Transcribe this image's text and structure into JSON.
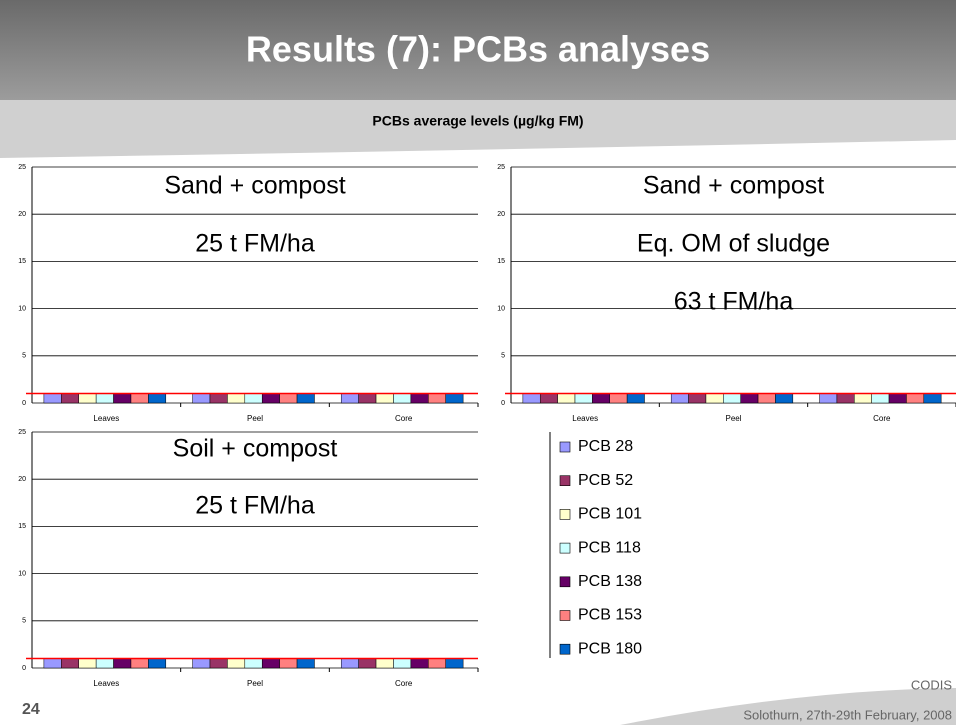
{
  "header": {
    "title": "Results (7): PCBs analyses",
    "subtitle": "PCBs average levels (µg/kg FM)"
  },
  "footer": {
    "page": "24",
    "org": "CODIS",
    "event": "Solothurn, 27th-29th February, 2008"
  },
  "chart_data": [
    {
      "type": "bar",
      "categories": [
        "Leaves",
        "Peel",
        "Core"
      ],
      "ylim": [
        0,
        25
      ],
      "yticks": [
        0,
        5,
        10,
        15,
        20,
        25
      ],
      "annotations": [
        "Sand + compost",
        "25 t FM/ha"
      ],
      "reference_line": 1,
      "reference_color": "#ff0000",
      "series": [
        {
          "name": "PCB 28",
          "color": "#9999ff",
          "values": [
            1,
            1,
            1
          ]
        },
        {
          "name": "PCB 52",
          "color": "#993366",
          "values": [
            1,
            1,
            1
          ]
        },
        {
          "name": "PCB 101",
          "color": "#ffffcc",
          "values": [
            1,
            1,
            1
          ]
        },
        {
          "name": "PCB 118",
          "color": "#ccffff",
          "values": [
            1,
            1,
            1
          ]
        },
        {
          "name": "PCB 138",
          "color": "#660066",
          "values": [
            1,
            1,
            1
          ]
        },
        {
          "name": "PCB 153",
          "color": "#ff8080",
          "values": [
            1,
            1,
            1
          ]
        },
        {
          "name": "PCB 180",
          "color": "#0066cc",
          "values": [
            1,
            1,
            1
          ]
        }
      ]
    },
    {
      "type": "bar",
      "categories": [
        "Leaves",
        "Peel",
        "Core"
      ],
      "ylim": [
        0,
        25
      ],
      "yticks": [
        0,
        5,
        10,
        15,
        20,
        25
      ],
      "annotations": [
        "Sand + compost",
        "Eq. OM of sludge",
        "63 t FM/ha"
      ],
      "reference_line": 1,
      "reference_color": "#ff0000",
      "series": [
        {
          "values": [
            1,
            1,
            1
          ]
        },
        {
          "values": [
            1,
            1,
            1
          ]
        },
        {
          "values": [
            1,
            1,
            1
          ]
        },
        {
          "values": [
            1,
            1,
            1
          ]
        },
        {
          "values": [
            1,
            1,
            1
          ]
        },
        {
          "values": [
            1,
            1,
            1
          ]
        },
        {
          "values": [
            1,
            1,
            1
          ]
        }
      ]
    },
    {
      "type": "bar",
      "categories": [
        "Leaves",
        "Peel",
        "Core"
      ],
      "ylim": [
        0,
        25
      ],
      "yticks": [
        0,
        5,
        10,
        15,
        20,
        25
      ],
      "annotations": [
        "Soil + compost",
        "25 t FM/ha"
      ],
      "reference_line": 1,
      "reference_color": "#ff0000",
      "series": [
        {
          "values": [
            1,
            1,
            1
          ]
        },
        {
          "values": [
            1,
            1,
            1
          ]
        },
        {
          "values": [
            1,
            1,
            1
          ]
        },
        {
          "values": [
            1,
            1,
            1
          ]
        },
        {
          "values": [
            1,
            1,
            1
          ]
        },
        {
          "values": [
            1,
            1,
            1
          ]
        },
        {
          "values": [
            1,
            1,
            1
          ]
        }
      ]
    }
  ]
}
